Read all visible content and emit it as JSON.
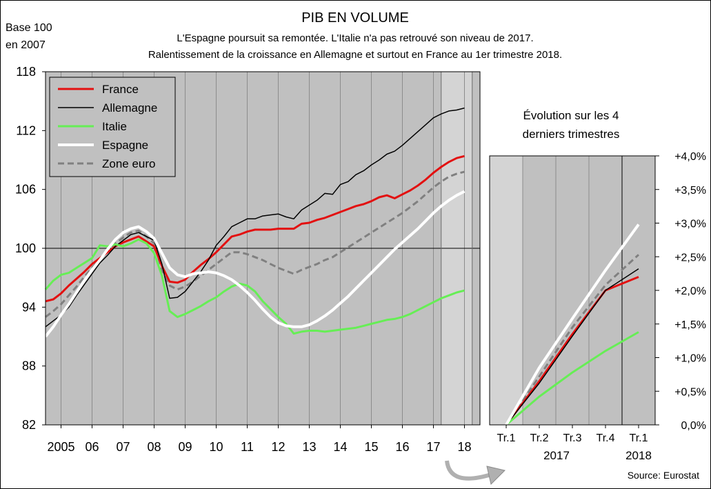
{
  "header": {
    "title": "PIB EN VOLUME",
    "subtitle_line1": "L'Espagne poursuit sa remontée. L'Italie n'a pas retrouvé son niveau de 2017.",
    "subtitle_line2": "Ralentissement de la croissance en Allemagne et surtout en France au 1er trimestre 2018.",
    "base_line1": "Base 100",
    "base_line2": "en 2007",
    "source": "Source: Eurostat"
  },
  "chart_data": [
    {
      "type": "line",
      "y_ticks": [
        "82",
        "88",
        "94",
        "100",
        "106",
        "112",
        "118"
      ],
      "ylim": [
        82,
        118
      ],
      "xlim": [
        2004.5,
        2018.5
      ],
      "x_ticks": [
        {
          "label": "2005",
          "x": 2005
        },
        {
          "label": "06",
          "x": 2006
        },
        {
          "label": "07",
          "x": 2007
        },
        {
          "label": "08",
          "x": 2008
        },
        {
          "label": "09",
          "x": 2009
        },
        {
          "label": "10",
          "x": 2010
        },
        {
          "label": "11",
          "x": 2011
        },
        {
          "label": "12",
          "x": 2012
        },
        {
          "label": "13",
          "x": 2013
        },
        {
          "label": "14",
          "x": 2014
        },
        {
          "label": "15",
          "x": 2015
        },
        {
          "label": "16",
          "x": 2016
        },
        {
          "label": "17",
          "x": 2017
        },
        {
          "label": "18",
          "x": 2018
        }
      ],
      "shaded_period": [
        2017.25,
        2018.25
      ],
      "reference_line": 100,
      "legend_position": "top-left",
      "colors": {
        "France": "#e31010",
        "Allemagne": "#000000",
        "Italie": "#66ee55",
        "Espagne": "#ffffff",
        "Zone euro": "#808080",
        "plot_bg": "#c0c0c0",
        "shade_bg": "#d4d4d4"
      },
      "series": [
        {
          "name": "France",
          "color": "#e31010",
          "x": [
            2004.5,
            2004.75,
            2005,
            2005.25,
            2005.5,
            2005.75,
            2006,
            2006.25,
            2006.5,
            2006.75,
            2007,
            2007.25,
            2007.5,
            2007.75,
            2008,
            2008.25,
            2008.5,
            2008.75,
            2009,
            2009.25,
            2009.5,
            2009.75,
            2010,
            2010.25,
            2010.5,
            2010.75,
            2011,
            2011.25,
            2011.5,
            2011.75,
            2012,
            2012.25,
            2012.5,
            2012.75,
            2013,
            2013.25,
            2013.5,
            2013.75,
            2014,
            2014.25,
            2014.5,
            2014.75,
            2015,
            2015.25,
            2015.5,
            2015.75,
            2016,
            2016.25,
            2016.5,
            2016.75,
            2017,
            2017.25,
            2017.5,
            2017.75,
            2018
          ],
          "y": [
            94.6,
            94.8,
            95.4,
            96.2,
            96.9,
            97.6,
            98.4,
            99.0,
            99.6,
            100.2,
            100.6,
            100.9,
            101.2,
            100.7,
            100.2,
            98.2,
            96.6,
            96.5,
            96.8,
            97.6,
            98.3,
            98.9,
            99.6,
            100.4,
            101.2,
            101.4,
            101.7,
            101.9,
            101.9,
            101.9,
            102.0,
            102.0,
            102.0,
            102.5,
            102.6,
            102.9,
            103.1,
            103.4,
            103.7,
            104.0,
            104.3,
            104.5,
            104.8,
            105.2,
            105.4,
            105.1,
            105.5,
            105.9,
            106.4,
            107.0,
            107.7,
            108.3,
            108.8,
            109.2,
            109.4
          ]
        },
        {
          "name": "Allemagne",
          "color": "#000000",
          "x": [
            2004.5,
            2004.75,
            2005,
            2005.25,
            2005.5,
            2005.75,
            2006,
            2006.25,
            2006.5,
            2006.75,
            2007,
            2007.25,
            2007.5,
            2007.75,
            2008,
            2008.25,
            2008.5,
            2008.75,
            2009,
            2009.25,
            2009.5,
            2009.75,
            2010,
            2010.25,
            2010.5,
            2010.75,
            2011,
            2011.25,
            2011.5,
            2011.75,
            2012,
            2012.25,
            2012.5,
            2012.75,
            2013,
            2013.25,
            2013.5,
            2013.75,
            2014,
            2014.25,
            2014.5,
            2014.75,
            2015,
            2015.25,
            2015.5,
            2015.75,
            2016,
            2016.25,
            2016.5,
            2016.75,
            2017,
            2017.25,
            2017.5,
            2017.75,
            2018
          ],
          "y": [
            92.0,
            92.6,
            93.2,
            94.0,
            95.2,
            96.3,
            97.4,
            98.5,
            99.3,
            100.2,
            100.8,
            101.4,
            101.6,
            101.2,
            100.8,
            98.4,
            94.9,
            95.0,
            95.6,
            96.6,
            97.6,
            98.8,
            100.3,
            101.2,
            102.2,
            102.6,
            103.0,
            103.0,
            103.3,
            103.4,
            103.5,
            103.2,
            103.0,
            103.9,
            104.4,
            104.9,
            105.6,
            105.5,
            106.5,
            106.8,
            107.5,
            107.9,
            108.5,
            109.0,
            109.6,
            109.9,
            110.5,
            111.2,
            111.9,
            112.6,
            113.3,
            113.7,
            114.0,
            114.1,
            114.3
          ]
        },
        {
          "name": "Italie",
          "color": "#66ee55",
          "x": [
            2004.5,
            2004.75,
            2005,
            2005.25,
            2005.5,
            2005.75,
            2006,
            2006.25,
            2006.5,
            2006.75,
            2007,
            2007.25,
            2007.5,
            2007.75,
            2008,
            2008.25,
            2008.5,
            2008.75,
            2009,
            2009.25,
            2009.5,
            2009.75,
            2010,
            2010.25,
            2010.5,
            2010.75,
            2011,
            2011.25,
            2011.5,
            2011.75,
            2012,
            2012.25,
            2012.5,
            2012.75,
            2013,
            2013.25,
            2013.5,
            2013.75,
            2014,
            2014.25,
            2014.5,
            2014.75,
            2015,
            2015.25,
            2015.5,
            2015.75,
            2016,
            2016.25,
            2016.5,
            2016.75,
            2017,
            2017.25,
            2017.5,
            2017.75,
            2018
          ],
          "y": [
            95.8,
            96.7,
            97.3,
            97.5,
            98.0,
            98.5,
            99.0,
            100.3,
            100.2,
            100.4,
            100.2,
            100.5,
            100.9,
            100.5,
            99.5,
            97.2,
            93.6,
            93.0,
            93.3,
            93.7,
            94.1,
            94.6,
            95.0,
            95.6,
            96.1,
            96.4,
            96.2,
            95.6,
            94.6,
            93.8,
            93.0,
            92.3,
            91.3,
            91.5,
            91.6,
            91.6,
            91.5,
            91.6,
            91.7,
            91.8,
            91.9,
            92.1,
            92.3,
            92.5,
            92.7,
            92.8,
            93.0,
            93.3,
            93.7,
            94.1,
            94.5,
            94.9,
            95.2,
            95.5,
            95.7
          ]
        },
        {
          "name": "Espagne",
          "color": "#ffffff",
          "x": [
            2004.5,
            2004.75,
            2005,
            2005.25,
            2005.5,
            2005.75,
            2006,
            2006.25,
            2006.5,
            2006.75,
            2007,
            2007.25,
            2007.5,
            2007.75,
            2008,
            2008.25,
            2008.5,
            2008.75,
            2009,
            2009.25,
            2009.5,
            2009.75,
            2010,
            2010.25,
            2010.5,
            2010.75,
            2011,
            2011.25,
            2011.5,
            2011.75,
            2012,
            2012.25,
            2012.5,
            2012.75,
            2013,
            2013.25,
            2013.5,
            2013.75,
            2014,
            2014.25,
            2014.5,
            2014.75,
            2015,
            2015.25,
            2015.5,
            2015.75,
            2016,
            2016.25,
            2016.5,
            2016.75,
            2017,
            2017.25,
            2017.5,
            2017.75,
            2018
          ],
          "y": [
            91.0,
            92.0,
            93.2,
            94.3,
            95.5,
            96.7,
            97.8,
            98.8,
            99.9,
            100.9,
            101.6,
            102.0,
            102.2,
            101.7,
            101.0,
            99.5,
            98.0,
            97.3,
            97.1,
            97.4,
            97.5,
            97.6,
            97.5,
            97.2,
            96.8,
            96.2,
            95.5,
            94.7,
            93.8,
            93.0,
            92.4,
            92.1,
            92.0,
            92.0,
            92.2,
            92.6,
            93.1,
            93.7,
            94.4,
            95.1,
            95.9,
            96.7,
            97.5,
            98.3,
            99.1,
            99.9,
            100.6,
            101.3,
            102.0,
            102.8,
            103.6,
            104.3,
            104.9,
            105.4,
            105.8
          ]
        },
        {
          "name": "Zone euro",
          "color": "#808080",
          "dashed": true,
          "x": [
            2004.5,
            2004.75,
            2005,
            2005.25,
            2005.5,
            2005.75,
            2006,
            2006.25,
            2006.5,
            2006.75,
            2007,
            2007.25,
            2007.5,
            2007.75,
            2008,
            2008.25,
            2008.5,
            2008.75,
            2009,
            2009.25,
            2009.5,
            2009.75,
            2010,
            2010.25,
            2010.5,
            2010.75,
            2011,
            2011.25,
            2011.5,
            2011.75,
            2012,
            2012.25,
            2012.5,
            2012.75,
            2013,
            2013.25,
            2013.5,
            2013.75,
            2014,
            2014.25,
            2014.5,
            2014.75,
            2015,
            2015.25,
            2015.5,
            2015.75,
            2016,
            2016.25,
            2016.5,
            2016.75,
            2017,
            2017.25,
            2017.5,
            2017.75,
            2018
          ],
          "y": [
            93.0,
            93.6,
            94.3,
            95.2,
            96.1,
            97.1,
            98.0,
            98.9,
            99.7,
            100.5,
            101.1,
            101.6,
            101.8,
            101.2,
            100.5,
            97.8,
            96.2,
            95.8,
            96.1,
            96.6,
            97.2,
            97.8,
            98.4,
            99.0,
            99.6,
            99.6,
            99.4,
            99.1,
            98.8,
            98.4,
            98.0,
            97.7,
            97.4,
            97.8,
            98.1,
            98.4,
            98.8,
            99.1,
            99.6,
            100.1,
            100.6,
            101.1,
            101.6,
            102.1,
            102.6,
            103.1,
            103.6,
            104.2,
            104.8,
            105.5,
            106.2,
            106.8,
            107.3,
            107.6,
            107.8
          ]
        }
      ]
    },
    {
      "type": "line",
      "title_line1": "Évolution sur les 4",
      "title_line2": "derniers trimestres",
      "categories": [
        "Tr.1",
        "Tr.2",
        "Tr.3",
        "Tr.4",
        "Tr.1"
      ],
      "year_labels": [
        "2017",
        "2018"
      ],
      "ylim": [
        0,
        4
      ],
      "y_ticks": [
        "0,0%",
        "+0,5%",
        "+1,0%",
        "+1,5%",
        "+2,0%",
        "+2,5%",
        "+3,0%",
        "+3,5%",
        "+4,0%"
      ],
      "y_tick_values": [
        0,
        0.5,
        1.0,
        1.5,
        2.0,
        2.5,
        3.0,
        3.5,
        4.0
      ],
      "shaded_category": 0,
      "colors": {
        "plot_bg": "#c0c0c0",
        "shade_bg": "#d4d4d4"
      },
      "series": [
        {
          "name": "France",
          "color": "#e31010",
          "values": [
            0,
            0.65,
            1.35,
            2.0,
            2.2
          ]
        },
        {
          "name": "Allemagne",
          "color": "#000000",
          "values": [
            0,
            0.62,
            1.32,
            2.0,
            2.32
          ]
        },
        {
          "name": "Italie",
          "color": "#66ee55",
          "values": [
            0,
            0.42,
            0.78,
            1.1,
            1.38
          ]
        },
        {
          "name": "Espagne",
          "color": "#ffffff",
          "values": [
            0,
            0.85,
            1.58,
            2.3,
            2.98
          ]
        },
        {
          "name": "Zone euro",
          "color": "#808080",
          "dashed": true,
          "values": [
            0,
            0.72,
            1.45,
            2.08,
            2.53
          ]
        }
      ]
    }
  ]
}
